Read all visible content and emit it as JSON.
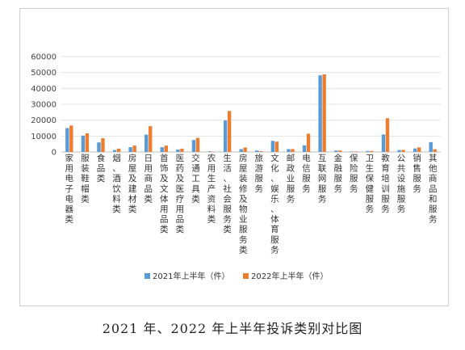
{
  "chart_data": {
    "type": "bar",
    "title": "",
    "xlabel": "",
    "ylabel": "",
    "ylim": [
      0,
      60000
    ],
    "yticks": [
      0,
      10000,
      20000,
      30000,
      40000,
      50000,
      60000
    ],
    "grid": true,
    "legend_position": "bottom",
    "categories": [
      "家用电子电器类",
      "服装鞋帽类",
      "食品类",
      "烟、酒饮料类",
      "房屋及建材类",
      "日用商品类",
      "首饰及文体用品类",
      "医药及医疗用品类",
      "交通工具类",
      "农用生产资料类",
      "生活、社会服务类",
      "房屋装修及物业服务类",
      "旅游服务",
      "文化、娱乐、体育服务",
      "邮政业服务",
      "电信服务",
      "互联网服务",
      "金融服务",
      "保险服务",
      "卫生保健服务",
      "教育培训服务",
      "公共设施服务",
      "销售服务",
      "其他商品和服务"
    ],
    "series": [
      {
        "name": "2021年上半年（件）",
        "color": "#5b9bd5",
        "values": [
          15000,
          10300,
          6000,
          1200,
          3000,
          10900,
          3000,
          1500,
          7500,
          400,
          19800,
          1800,
          900,
          7000,
          1800,
          4200,
          48200,
          900,
          300,
          600,
          11000,
          1200,
          2200,
          6200
        ]
      },
      {
        "name": "2022年上半年（件）",
        "color": "#ed7d31",
        "values": [
          16600,
          11700,
          8600,
          2100,
          4000,
          16200,
          4000,
          2100,
          8900,
          200,
          25800,
          2800,
          500,
          6500,
          1800,
          11500,
          48800,
          900,
          300,
          600,
          21200,
          1300,
          2900,
          1700
        ]
      }
    ]
  },
  "caption": "2021 年、2022 年上半年投诉类别对比图"
}
